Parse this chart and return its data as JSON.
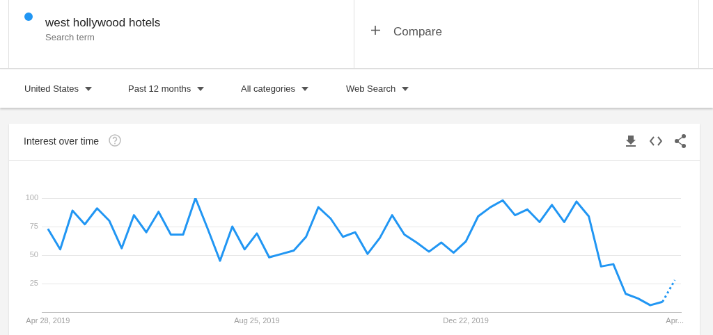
{
  "chart_data": {
    "type": "line",
    "title": "Interest over time",
    "categories": [
      "Apr 28, 2019",
      null,
      null,
      null,
      null,
      null,
      null,
      null,
      null,
      null,
      null,
      null,
      null,
      null,
      null,
      null,
      null,
      "Aug 25, 2019",
      null,
      null,
      null,
      null,
      null,
      null,
      null,
      null,
      null,
      null,
      null,
      null,
      null,
      null,
      null,
      null,
      "Dec 22, 2019",
      null,
      null,
      null,
      null,
      null,
      null,
      null,
      null,
      null,
      null,
      null,
      null,
      null,
      null,
      null,
      null,
      "Apr..."
    ],
    "series": [
      {
        "name": "west hollywood hotels",
        "color": "#2196f3",
        "values": [
          73,
          55,
          89,
          77,
          91,
          80,
          56,
          85,
          70,
          88,
          68,
          68,
          100,
          73,
          45,
          75,
          55,
          69,
          48,
          51,
          54,
          66,
          92,
          82,
          66,
          70,
          51,
          65,
          85,
          68,
          61,
          53,
          61,
          52,
          62,
          84,
          92,
          98,
          85,
          90,
          79,
          94,
          79,
          97,
          84,
          40,
          42,
          16,
          12,
          6,
          9,
          null
        ]
      },
      {
        "color": "#2196f3",
        "line_style": "dotted",
        "values": [
          null,
          null,
          null,
          null,
          null,
          null,
          null,
          null,
          null,
          null,
          null,
          null,
          null,
          null,
          null,
          null,
          null,
          null,
          null,
          null,
          null,
          null,
          null,
          null,
          null,
          null,
          null,
          null,
          null,
          null,
          null,
          null,
          null,
          null,
          null,
          null,
          null,
          null,
          null,
          null,
          null,
          null,
          null,
          null,
          null,
          null,
          null,
          null,
          null,
          null,
          9,
          28
        ]
      }
    ],
    "ylim": [
      0,
      100
    ],
    "yticks": [
      {
        "value": 0,
        "label": null
      },
      25,
      50,
      75,
      100
    ],
    "grid": "y",
    "legend": "top left",
    "marker": "none",
    "line_style": "solid",
    "annotations": [
      "Search term",
      "Compare",
      "United States",
      "Past 12 months",
      "All categories",
      "Web Search"
    ]
  }
}
